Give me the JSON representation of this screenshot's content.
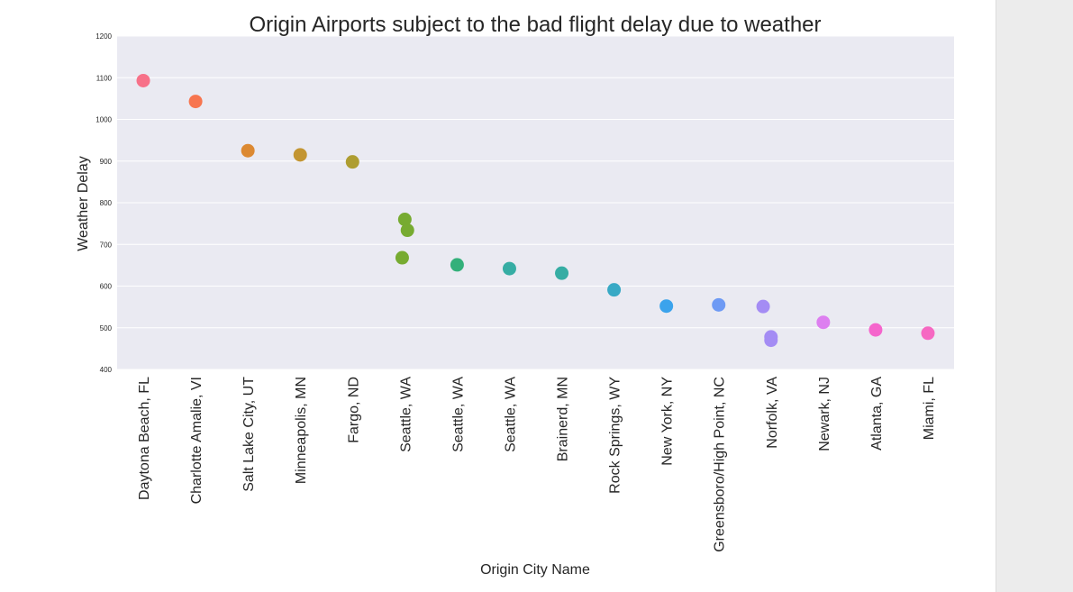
{
  "chart_data": {
    "type": "scatter",
    "title": "Origin Airports subject to the bad flight delay due to weather",
    "xlabel": "Origin City Name",
    "ylabel": "Weather Delay",
    "ylim": [
      400,
      1200
    ],
    "yticks": [
      400,
      500,
      600,
      700,
      800,
      900,
      1000,
      1100,
      1200
    ],
    "grid": true,
    "categories": [
      "Daytona Beach, FL",
      "Charlotte Amalie, VI",
      "Salt Lake City, UT",
      "Minneapolis, MN",
      "Fargo, ND",
      "Seattle, WA",
      "Seattle, WA",
      "Seattle, WA",
      "Brainerd, MN",
      "Rock Springs, WY",
      "New York, NY",
      "Greensboro/High Point, NC",
      "Norfolk, VA",
      "Newark, NJ",
      "Atlanta, GA",
      "Miami, FL"
    ],
    "points": [
      {
        "category_index": 0,
        "value": 1093,
        "jitter": 0.0
      },
      {
        "category_index": 1,
        "value": 1043,
        "jitter": 0.0
      },
      {
        "category_index": 2,
        "value": 925,
        "jitter": 0.0
      },
      {
        "category_index": 3,
        "value": 915,
        "jitter": 0.0
      },
      {
        "category_index": 4,
        "value": 898,
        "jitter": 0.0
      },
      {
        "category_index": 5,
        "value": 760,
        "jitter": 0.0
      },
      {
        "category_index": 5,
        "value": 734,
        "jitter": 0.05
      },
      {
        "category_index": 5,
        "value": 668,
        "jitter": -0.05
      },
      {
        "category_index": 6,
        "value": 651,
        "jitter": 0.0
      },
      {
        "category_index": 7,
        "value": 642,
        "jitter": 0.0
      },
      {
        "category_index": 8,
        "value": 631,
        "jitter": 0.0
      },
      {
        "category_index": 9,
        "value": 591,
        "jitter": 0.0
      },
      {
        "category_index": 10,
        "value": 552,
        "jitter": 0.0
      },
      {
        "category_index": 11,
        "value": 555,
        "jitter": 0.0
      },
      {
        "category_index": 12,
        "value": 551,
        "jitter": -0.15
      },
      {
        "category_index": 12,
        "value": 478,
        "jitter": 0.0
      },
      {
        "category_index": 12,
        "value": 470,
        "jitter": 0.0
      },
      {
        "category_index": 13,
        "value": 513,
        "jitter": 0.0
      },
      {
        "category_index": 14,
        "value": 495,
        "jitter": 0.0
      },
      {
        "category_index": 15,
        "value": 487,
        "jitter": 0.0
      }
    ],
    "colors": [
      "#f77189",
      "#f7754f",
      "#dc8932",
      "#c39532",
      "#ae9d31",
      "#77ab31",
      "#33b07a",
      "#36ada4",
      "#38a9c5",
      "#3ba3ec",
      "#3ba3ec",
      "#6e9af4",
      "#a48cf4",
      "#a48cf4",
      "#cc7af4",
      "#f565cc",
      "#f668c2"
    ],
    "category_colors": [
      "#f77189",
      "#f7754f",
      "#dc8932",
      "#c39532",
      "#ae9d31",
      "#77ab31",
      "#33b07a",
      "#36ada4",
      "#36ada4",
      "#38a9c5",
      "#3ba3ec",
      "#6e9af4",
      "#a48cf4",
      "#dd7ff0",
      "#f565cc",
      "#f668c2"
    ],
    "background_color": "#eaeaf2",
    "grid_color": "#ffffff"
  }
}
